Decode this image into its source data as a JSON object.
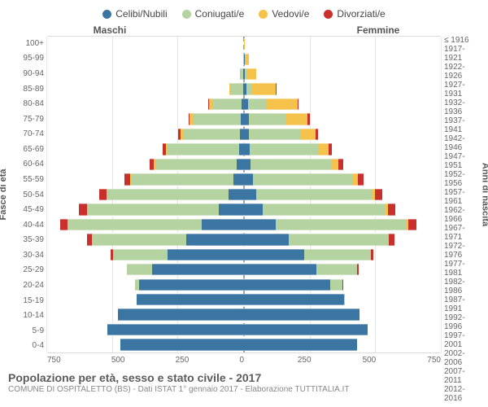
{
  "legend": [
    {
      "label": "Celibi/Nubili",
      "color": "#3b76a3"
    },
    {
      "label": "Coniugati/e",
      "color": "#b5d3a0"
    },
    {
      "label": "Vedovi/e",
      "color": "#f5c24b"
    },
    {
      "label": "Divorziati/e",
      "color": "#c9302c"
    }
  ],
  "gender": {
    "male": "Maschi",
    "female": "Femmine"
  },
  "yLeft": {
    "title": "Fasce di età",
    "ticks": [
      "100+",
      "95-99",
      "90-94",
      "85-89",
      "80-84",
      "75-79",
      "70-74",
      "65-69",
      "60-64",
      "55-59",
      "50-54",
      "45-49",
      "40-44",
      "35-39",
      "30-34",
      "25-29",
      "20-24",
      "15-19",
      "10-14",
      "5-9",
      "0-4"
    ]
  },
  "yRight": {
    "title": "Anni di nascita",
    "ticks": [
      "≤ 1916",
      "1917-1921",
      "1922-1926",
      "1927-1931",
      "1932-1936",
      "1937-1941",
      "1942-1946",
      "1947-1951",
      "1952-1956",
      "1957-1961",
      "1962-1966",
      "1967-1971",
      "1972-1976",
      "1977-1981",
      "1982-1986",
      "1987-1991",
      "1992-1996",
      "1997-2001",
      "2002-2006",
      "2007-2011",
      "2012-2016"
    ]
  },
  "xAxis": {
    "max": 750,
    "ticks": [
      0,
      250,
      500,
      750
    ]
  },
  "colors": {
    "single": "#3b76a3",
    "married": "#b5d3a0",
    "widowed": "#f5c24b",
    "divorced": "#c9302c",
    "grid": "#e6e6e6",
    "center": "#9aa7b0",
    "bg": "#ffffff"
  },
  "typography": {
    "legend_fontsize": 12,
    "tick_fontsize": 10,
    "title_fontsize": 14,
    "subtitle_fontsize": 10
  },
  "rows": [
    {
      "m": {
        "s": 0,
        "c": 1,
        "w": 0,
        "d": 0
      },
      "f": {
        "s": 0,
        "c": 0,
        "w": 3,
        "d": 0
      }
    },
    {
      "m": {
        "s": 0,
        "c": 3,
        "w": 1,
        "d": 0
      },
      "f": {
        "s": 2,
        "c": 1,
        "w": 15,
        "d": 0
      }
    },
    {
      "m": {
        "s": 2,
        "c": 10,
        "w": 3,
        "d": 0
      },
      "f": {
        "s": 4,
        "c": 4,
        "w": 40,
        "d": 0
      }
    },
    {
      "m": {
        "s": 4,
        "c": 45,
        "w": 8,
        "d": 0
      },
      "f": {
        "s": 10,
        "c": 20,
        "w": 90,
        "d": 2
      }
    },
    {
      "m": {
        "s": 8,
        "c": 110,
        "w": 15,
        "d": 2
      },
      "f": {
        "s": 15,
        "c": 70,
        "w": 120,
        "d": 4
      }
    },
    {
      "m": {
        "s": 12,
        "c": 180,
        "w": 15,
        "d": 5
      },
      "f": {
        "s": 18,
        "c": 140,
        "w": 85,
        "d": 8
      }
    },
    {
      "m": {
        "s": 15,
        "c": 215,
        "w": 12,
        "d": 8
      },
      "f": {
        "s": 18,
        "c": 200,
        "w": 55,
        "d": 10
      }
    },
    {
      "m": {
        "s": 20,
        "c": 270,
        "w": 8,
        "d": 12
      },
      "f": {
        "s": 22,
        "c": 260,
        "w": 40,
        "d": 14
      }
    },
    {
      "m": {
        "s": 28,
        "c": 310,
        "w": 6,
        "d": 16
      },
      "f": {
        "s": 26,
        "c": 310,
        "w": 25,
        "d": 18
      }
    },
    {
      "m": {
        "s": 40,
        "c": 390,
        "w": 5,
        "d": 22
      },
      "f": {
        "s": 35,
        "c": 380,
        "w": 18,
        "d": 24
      }
    },
    {
      "m": {
        "s": 60,
        "c": 460,
        "w": 4,
        "d": 28
      },
      "f": {
        "s": 48,
        "c": 440,
        "w": 12,
        "d": 28
      }
    },
    {
      "m": {
        "s": 95,
        "c": 500,
        "w": 3,
        "d": 30
      },
      "f": {
        "s": 70,
        "c": 470,
        "w": 8,
        "d": 28
      }
    },
    {
      "m": {
        "s": 160,
        "c": 510,
        "w": 2,
        "d": 28
      },
      "f": {
        "s": 120,
        "c": 500,
        "w": 6,
        "d": 30
      }
    },
    {
      "m": {
        "s": 220,
        "c": 360,
        "w": 1,
        "d": 18
      },
      "f": {
        "s": 170,
        "c": 380,
        "w": 3,
        "d": 20
      }
    },
    {
      "m": {
        "s": 290,
        "c": 210,
        "w": 0,
        "d": 8
      },
      "f": {
        "s": 230,
        "c": 250,
        "w": 2,
        "d": 12
      }
    },
    {
      "m": {
        "s": 350,
        "c": 95,
        "w": 0,
        "d": 2
      },
      "f": {
        "s": 275,
        "c": 155,
        "w": 0,
        "d": 6
      }
    },
    {
      "m": {
        "s": 400,
        "c": 15,
        "w": 0,
        "d": 0
      },
      "f": {
        "s": 330,
        "c": 45,
        "w": 0,
        "d": 1
      }
    },
    {
      "m": {
        "s": 410,
        "c": 0,
        "w": 0,
        "d": 0
      },
      "f": {
        "s": 380,
        "c": 3,
        "w": 0,
        "d": 0
      }
    },
    {
      "m": {
        "s": 480,
        "c": 0,
        "w": 0,
        "d": 0
      },
      "f": {
        "s": 440,
        "c": 0,
        "w": 0,
        "d": 0
      }
    },
    {
      "m": {
        "s": 520,
        "c": 0,
        "w": 0,
        "d": 0
      },
      "f": {
        "s": 470,
        "c": 0,
        "w": 0,
        "d": 0
      }
    },
    {
      "m": {
        "s": 470,
        "c": 0,
        "w": 0,
        "d": 0
      },
      "f": {
        "s": 430,
        "c": 0,
        "w": 0,
        "d": 0
      }
    }
  ],
  "footer": {
    "title": "Popolazione per età, sesso e stato civile - 2017",
    "subtitle": "COMUNE DI OSPITALETTO (BS) - Dati ISTAT 1° gennaio 2017 - Elaborazione TUTTITALIA.IT"
  }
}
